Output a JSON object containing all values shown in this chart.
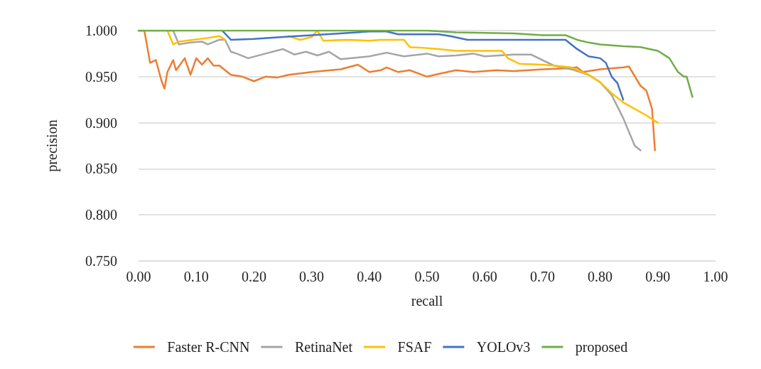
{
  "chart_data": {
    "type": "line",
    "xlabel": "recall",
    "ylabel": "precision",
    "xlim": [
      0,
      1
    ],
    "ylim": [
      0.75,
      1
    ],
    "xticks": [
      {
        "value": 0,
        "label": "0.00"
      },
      {
        "value": 0.1,
        "label": "0.10"
      },
      {
        "value": 0.2,
        "label": "0.20"
      },
      {
        "value": 0.3,
        "label": "0.30"
      },
      {
        "value": 0.4,
        "label": "0.40"
      },
      {
        "value": 0.5,
        "label": "0.50"
      },
      {
        "value": 0.6,
        "label": "0.60"
      },
      {
        "value": 0.7,
        "label": "0.70"
      },
      {
        "value": 0.8,
        "label": "0.80"
      },
      {
        "value": 0.9,
        "label": "0.90"
      },
      {
        "value": 1,
        "label": "1.00"
      }
    ],
    "yticks": [
      {
        "value": 0.75,
        "label": "0.750"
      },
      {
        "value": 0.8,
        "label": "0.800"
      },
      {
        "value": 0.85,
        "label": "0.850"
      },
      {
        "value": 0.9,
        "label": "0.900"
      },
      {
        "value": 0.95,
        "label": "0.950"
      },
      {
        "value": 1,
        "label": "1.000"
      }
    ],
    "grid": "y",
    "legend": "bottom",
    "marker": "none",
    "line_style": "solid",
    "series": [
      {
        "name": "Faster R-CNN",
        "color": "#ed7d31",
        "x": [
          0,
          0.01,
          0.02,
          0.03,
          0.04,
          0.045,
          0.05,
          0.06,
          0.065,
          0.08,
          0.09,
          0.1,
          0.11,
          0.12,
          0.13,
          0.14,
          0.16,
          0.18,
          0.2,
          0.22,
          0.24,
          0.26,
          0.3,
          0.35,
          0.38,
          0.4,
          0.42,
          0.43,
          0.45,
          0.47,
          0.5,
          0.52,
          0.55,
          0.58,
          0.62,
          0.65,
          0.7,
          0.74,
          0.76,
          0.77,
          0.8,
          0.84,
          0.85,
          0.87,
          0.88,
          0.89,
          0.895
        ],
        "values": [
          1,
          1,
          0.965,
          0.968,
          0.945,
          0.937,
          0.955,
          0.968,
          0.957,
          0.97,
          0.952,
          0.97,
          0.963,
          0.97,
          0.962,
          0.962,
          0.952,
          0.95,
          0.945,
          0.95,
          0.949,
          0.952,
          0.955,
          0.958,
          0.963,
          0.955,
          0.957,
          0.96,
          0.955,
          0.957,
          0.95,
          0.953,
          0.957,
          0.955,
          0.957,
          0.956,
          0.958,
          0.959,
          0.96,
          0.955,
          0.958,
          0.96,
          0.961,
          0.94,
          0.935,
          0.915,
          0.87
        ]
      },
      {
        "name": "RetinaNet",
        "color": "#a5a5a5",
        "x": [
          0,
          0.06,
          0.07,
          0.09,
          0.11,
          0.12,
          0.14,
          0.15,
          0.16,
          0.17,
          0.19,
          0.22,
          0.25,
          0.27,
          0.29,
          0.31,
          0.33,
          0.35,
          0.4,
          0.43,
          0.46,
          0.5,
          0.52,
          0.55,
          0.58,
          0.6,
          0.65,
          0.68,
          0.72,
          0.75,
          0.78,
          0.8,
          0.82,
          0.84,
          0.86,
          0.87
        ],
        "values": [
          1,
          1,
          0.985,
          0.987,
          0.988,
          0.985,
          0.99,
          0.99,
          0.977,
          0.975,
          0.97,
          0.975,
          0.98,
          0.974,
          0.977,
          0.973,
          0.977,
          0.969,
          0.972,
          0.976,
          0.972,
          0.975,
          0.972,
          0.973,
          0.975,
          0.972,
          0.974,
          0.974,
          0.962,
          0.958,
          0.952,
          0.944,
          0.93,
          0.905,
          0.875,
          0.87
        ]
      },
      {
        "name": "FSAF",
        "color": "#ffc000",
        "x": [
          0.05,
          0.06,
          0.07,
          0.12,
          0.14,
          0.15,
          0.2,
          0.26,
          0.28,
          0.3,
          0.31,
          0.32,
          0.36,
          0.4,
          0.42,
          0.46,
          0.47,
          0.5,
          0.52,
          0.55,
          0.63,
          0.64,
          0.66,
          0.7,
          0.72,
          0.75,
          0.78,
          0.8,
          0.82,
          0.84,
          0.86,
          0.88,
          0.9
        ],
        "values": [
          1,
          0.985,
          0.988,
          0.992,
          0.994,
          0.99,
          null,
          0.994,
          0.99,
          0.993,
          1,
          0.989,
          0.99,
          0.989,
          0.99,
          0.99,
          0.982,
          0.981,
          0.98,
          0.978,
          0.978,
          0.97,
          0.964,
          0.963,
          0.962,
          0.96,
          0.952,
          0.944,
          0.932,
          0.922,
          0.915,
          0.908,
          0.9
        ]
      },
      {
        "name": "YOLOv3",
        "color": "#4472c4",
        "x": [
          0.145,
          0.16,
          0.2,
          0.25,
          0.3,
          0.35,
          0.4,
          0.43,
          0.45,
          0.52,
          0.54,
          0.57,
          0.65,
          0.74,
          0.76,
          0.78,
          0.8,
          0.81,
          0.82,
          0.83,
          0.84
        ],
        "values": [
          1,
          0.99,
          0.991,
          0.993,
          0.995,
          0.997,
          0.999,
          0.999,
          0.996,
          0.996,
          0.994,
          0.99,
          0.99,
          0.99,
          0.98,
          0.972,
          0.97,
          0.965,
          0.95,
          0.943,
          0.925
        ]
      },
      {
        "name": "proposed",
        "color": "#70ad47",
        "x": [
          0,
          0.5,
          0.55,
          0.65,
          0.7,
          0.74,
          0.76,
          0.78,
          0.8,
          0.84,
          0.87,
          0.9,
          0.92,
          0.935,
          0.945,
          0.95,
          0.96
        ],
        "values": [
          1,
          1,
          0.998,
          0.997,
          0.995,
          0.995,
          0.99,
          0.987,
          0.985,
          0.983,
          0.982,
          0.978,
          0.97,
          0.955,
          0.95,
          0.95,
          0.928
        ]
      }
    ]
  }
}
